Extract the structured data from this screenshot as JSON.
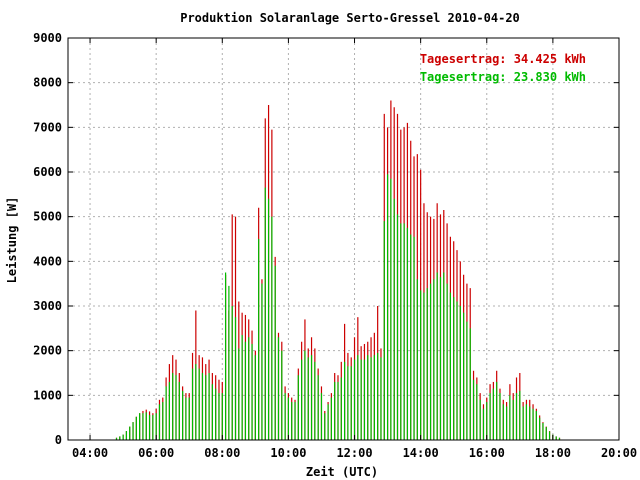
{
  "chart_data": {
    "type": "bar",
    "title": "Produktion Solaranlage Serto-Gressel 2010-04-20",
    "xlabel": "Zeit (UTC)",
    "ylabel": "Leistung [W]",
    "xlim": [
      3.333,
      20.0
    ],
    "ylim": [
      0,
      9000
    ],
    "grid": true,
    "legend_position": "top-right",
    "x_ticks": [
      {
        "value": 4,
        "label": "04:00"
      },
      {
        "value": 6,
        "label": "06:00"
      },
      {
        "value": 8,
        "label": "08:00"
      },
      {
        "value": 10,
        "label": "10:00"
      },
      {
        "value": 12,
        "label": "12:00"
      },
      {
        "value": 14,
        "label": "14:00"
      },
      {
        "value": 16,
        "label": "16:00"
      },
      {
        "value": 18,
        "label": "18:00"
      },
      {
        "value": 20,
        "label": "20:00"
      }
    ],
    "y_ticks": [
      {
        "value": 0,
        "label": "0"
      },
      {
        "value": 1000,
        "label": "1000"
      },
      {
        "value": 2000,
        "label": "2000"
      },
      {
        "value": 3000,
        "label": "3000"
      },
      {
        "value": 4000,
        "label": "4000"
      },
      {
        "value": 5000,
        "label": "5000"
      },
      {
        "value": 6000,
        "label": "6000"
      },
      {
        "value": 7000,
        "label": "7000"
      },
      {
        "value": 8000,
        "label": "8000"
      },
      {
        "value": 9000,
        "label": "9000"
      }
    ],
    "colors": {
      "red": "#cc0000",
      "green": "#00bb00",
      "grid": "#b0b0b0"
    },
    "x": [
      4.8,
      4.9,
      5.0,
      5.1,
      5.2,
      5.3,
      5.4,
      5.5,
      5.6,
      5.7,
      5.8,
      5.9,
      6.0,
      6.1,
      6.2,
      6.3,
      6.4,
      6.5,
      6.6,
      6.7,
      6.8,
      6.9,
      7.0,
      7.1,
      7.2,
      7.3,
      7.4,
      7.5,
      7.6,
      7.7,
      7.8,
      7.9,
      8.0,
      8.1,
      8.2,
      8.3,
      8.4,
      8.5,
      8.6,
      8.7,
      8.8,
      8.9,
      9.0,
      9.1,
      9.2,
      9.3,
      9.4,
      9.5,
      9.6,
      9.7,
      9.8,
      9.9,
      10.0,
      10.1,
      10.2,
      10.3,
      10.4,
      10.5,
      10.6,
      10.7,
      10.8,
      10.9,
      11.0,
      11.1,
      11.2,
      11.3,
      11.4,
      11.5,
      11.6,
      11.7,
      11.8,
      11.9,
      12.0,
      12.1,
      12.2,
      12.3,
      12.4,
      12.5,
      12.6,
      12.7,
      12.8,
      12.9,
      13.0,
      13.1,
      13.2,
      13.3,
      13.4,
      13.5,
      13.6,
      13.7,
      13.8,
      13.9,
      14.0,
      14.1,
      14.2,
      14.3,
      14.4,
      14.5,
      14.6,
      14.7,
      14.8,
      14.9,
      15.0,
      15.1,
      15.2,
      15.3,
      15.4,
      15.5,
      15.6,
      15.7,
      15.8,
      15.9,
      16.0,
      16.1,
      16.2,
      16.3,
      16.4,
      16.5,
      16.6,
      16.7,
      16.8,
      16.9,
      17.0,
      17.1,
      17.2,
      17.3,
      17.4,
      17.5,
      17.6,
      17.7,
      17.8,
      17.9,
      18.0,
      18.1,
      18.2
    ],
    "series": [
      {
        "name": "Tagesertrag: 34.425 kWh",
        "color": "#cc0000",
        "values": [
          50,
          80,
          120,
          200,
          300,
          400,
          520,
          600,
          650,
          680,
          640,
          600,
          700,
          900,
          950,
          1400,
          1700,
          1900,
          1800,
          1500,
          1200,
          1050,
          1050,
          1950,
          2900,
          1900,
          1850,
          1700,
          1800,
          1500,
          1450,
          1350,
          1300,
          3700,
          2900,
          5050,
          5000,
          3100,
          2850,
          2800,
          2700,
          2450,
          2000,
          5200,
          3600,
          7200,
          7500,
          6950,
          4100,
          2400,
          2200,
          1200,
          1050,
          950,
          900,
          1600,
          2200,
          2700,
          2050,
          2300,
          2050,
          1600,
          1200,
          650,
          850,
          1050,
          1500,
          1450,
          1750,
          2600,
          1950,
          1850,
          2300,
          2750,
          2100,
          2150,
          2200,
          2300,
          2400,
          3000,
          2050,
          7300,
          7000,
          7600,
          7450,
          7300,
          6950,
          7000,
          7100,
          6700,
          6350,
          6400,
          6050,
          5300,
          5100,
          5000,
          4950,
          5300,
          5050,
          5150,
          4850,
          4550,
          4450,
          4250,
          4000,
          3700,
          3500,
          3400,
          1550,
          1400,
          1050,
          800,
          950,
          1250,
          1300,
          1550,
          1150,
          900,
          850,
          1250,
          1050,
          1400,
          1500,
          850,
          900,
          900,
          800,
          700,
          550,
          400,
          300,
          200,
          120,
          80,
          50
        ]
      },
      {
        "name": "Tagesertrag: 23.830 kWh",
        "color": "#00bb00",
        "values": [
          50,
          80,
          120,
          200,
          300,
          400,
          520,
          600,
          600,
          620,
          560,
          560,
          600,
          800,
          850,
          1200,
          1300,
          1500,
          1450,
          1300,
          1100,
          950,
          950,
          1600,
          1700,
          1600,
          1500,
          1450,
          1500,
          1250,
          1150,
          1050,
          1050,
          3750,
          3450,
          3000,
          2750,
          2050,
          2350,
          2200,
          2300,
          2150,
          1900,
          4500,
          3500,
          5650,
          5400,
          5000,
          3900,
          2300,
          2000,
          1050,
          950,
          850,
          850,
          1450,
          1800,
          2000,
          1850,
          1900,
          1750,
          1450,
          1050,
          600,
          800,
          950,
          1300,
          1300,
          1400,
          1750,
          1650,
          1650,
          1800,
          1900,
          1800,
          1800,
          1900,
          1850,
          1900,
          1950,
          1850,
          4900,
          5950,
          5850,
          5400,
          5050,
          4850,
          4850,
          4750,
          4600,
          4550,
          3600,
          3350,
          3300,
          3400,
          3500,
          3600,
          3750,
          3650,
          3750,
          3500,
          3300,
          3200,
          3100,
          3000,
          2850,
          2650,
          2500,
          1350,
          1250,
          900,
          700,
          850,
          1050,
          1150,
          1300,
          1050,
          800,
          750,
          1000,
          900,
          1050,
          1100,
          750,
          800,
          750,
          700,
          650,
          500,
          380,
          290,
          190,
          120,
          80,
          50
        ]
      }
    ]
  }
}
